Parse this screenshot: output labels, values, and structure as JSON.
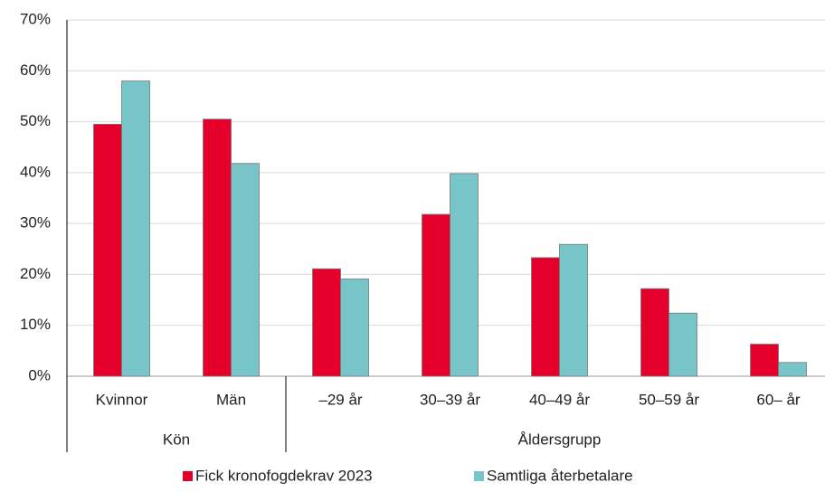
{
  "chart_data": {
    "type": "bar",
    "groups": [
      {
        "name": "Kön",
        "categories": [
          "Kvinnor",
          "Män"
        ]
      },
      {
        "name": "Åldersgrupp",
        "categories": [
          "–29 år",
          "30–39 år",
          "40–49 år",
          "50–59 år",
          "60– år"
        ]
      }
    ],
    "series": [
      {
        "name": "Fick kronofogdekrav 2023",
        "color": "#e4002b",
        "values": [
          49.5,
          50.5,
          21.1,
          31.8,
          23.3,
          17.2,
          6.3
        ]
      },
      {
        "name": "Samtliga återbetalare",
        "color": "#77c5c8",
        "values": [
          58,
          41.8,
          19.1,
          39.8,
          25.9,
          12.4,
          2.7
        ]
      }
    ],
    "ylim": [
      0,
      70
    ],
    "yticks": [
      {
        "value": 0,
        "label": "0%"
      },
      {
        "value": 10,
        "label": "10%"
      },
      {
        "value": 20,
        "label": "20%"
      },
      {
        "value": 30,
        "label": "30%"
      },
      {
        "value": 40,
        "label": "40%"
      },
      {
        "value": 50,
        "label": "50%"
      },
      {
        "value": 60,
        "label": "60%"
      },
      {
        "value": 70,
        "label": "70%"
      }
    ],
    "grid": true,
    "legend": "bottom"
  }
}
